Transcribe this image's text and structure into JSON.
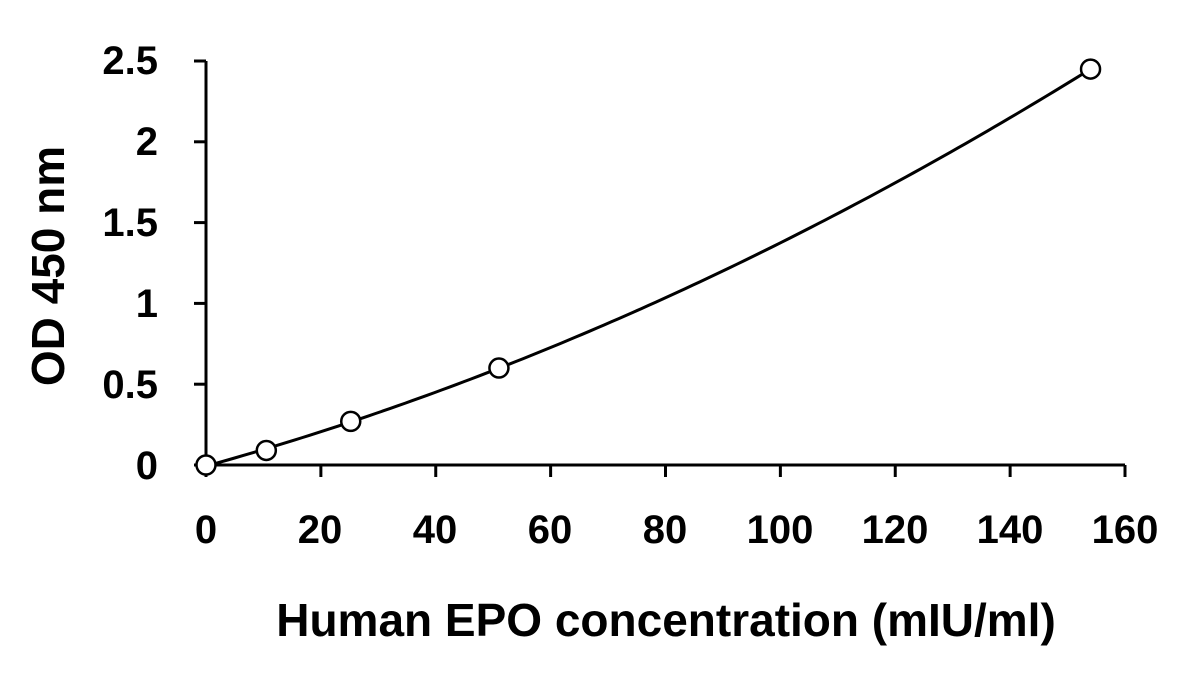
{
  "chart_data": {
    "type": "scatter",
    "xlabel": "Human EPO concentration (mIU/ml)",
    "ylabel": "OD 450 nm",
    "xlim": [
      0,
      160
    ],
    "ylim": [
      0,
      2.5
    ],
    "x_ticks": [
      "0",
      "20",
      "40",
      "60",
      "80",
      "100",
      "120",
      "140",
      "160"
    ],
    "y_ticks": [
      "0",
      "0.5",
      "1",
      "1.5",
      "2",
      "2.5"
    ],
    "series": [
      {
        "x": [
          0,
          10.5,
          25.2,
          51,
          154
        ],
        "y": [
          0,
          0.09,
          0.27,
          0.6,
          2.45
        ]
      }
    ],
    "fit_curve": true,
    "grid": false,
    "colors": {
      "line": "#000000",
      "marker_stroke": "#000000",
      "marker_fill": "#ffffff"
    }
  }
}
